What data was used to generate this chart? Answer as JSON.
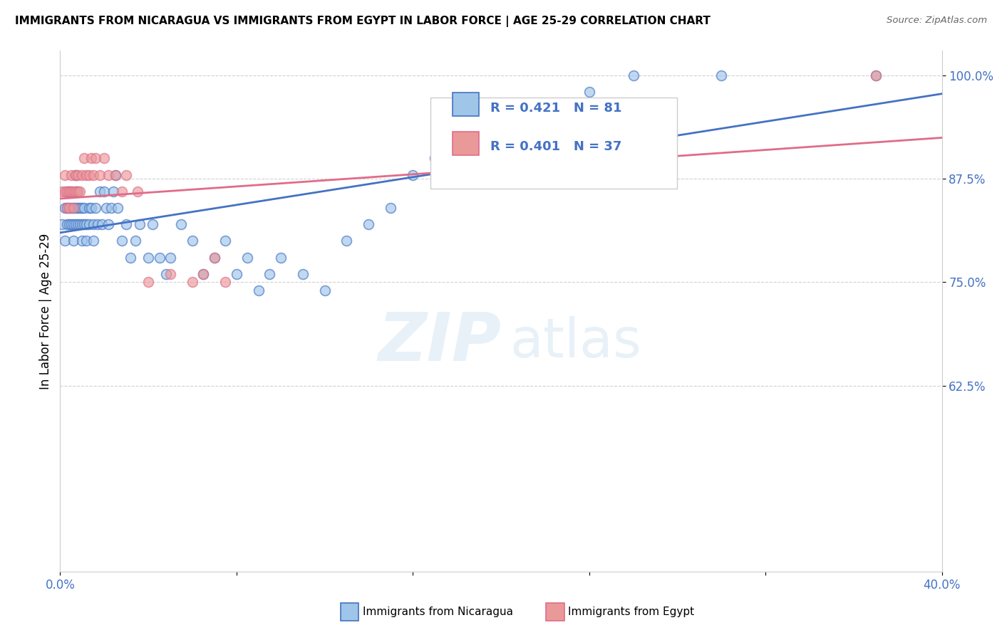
{
  "title": "IMMIGRANTS FROM NICARAGUA VS IMMIGRANTS FROM EGYPT IN LABOR FORCE | AGE 25-29 CORRELATION CHART",
  "source": "Source: ZipAtlas.com",
  "ylabel": "In Labor Force | Age 25-29",
  "xlim": [
    0.0,
    0.4
  ],
  "ylim": [
    0.4,
    1.03
  ],
  "xtick_positions": [
    0.0,
    0.08,
    0.16,
    0.24,
    0.32,
    0.4
  ],
  "xtick_labels": [
    "0.0%",
    "",
    "",
    "",
    "",
    "40.0%"
  ],
  "ytick_positions": [
    0.625,
    0.75,
    0.875,
    1.0
  ],
  "ytick_labels": [
    "62.5%",
    "75.0%",
    "87.5%",
    "100.0%"
  ],
  "nicaragua_color": "#9fc5e8",
  "egypt_color": "#ea9999",
  "nicaragua_line_color": "#4472c4",
  "egypt_line_color": "#e06c8a",
  "R_nicaragua": 0.421,
  "N_nicaragua": 81,
  "R_egypt": 0.401,
  "N_egypt": 37,
  "watermark_zip": "ZIP",
  "watermark_atlas": "atlas",
  "nicaragua_x": [
    0.001,
    0.002,
    0.002,
    0.003,
    0.003,
    0.003,
    0.004,
    0.004,
    0.004,
    0.005,
    0.005,
    0.005,
    0.006,
    0.006,
    0.006,
    0.007,
    0.007,
    0.007,
    0.007,
    0.008,
    0.008,
    0.008,
    0.009,
    0.009,
    0.01,
    0.01,
    0.01,
    0.011,
    0.011,
    0.012,
    0.012,
    0.013,
    0.013,
    0.014,
    0.015,
    0.015,
    0.016,
    0.017,
    0.018,
    0.019,
    0.02,
    0.021,
    0.022,
    0.023,
    0.024,
    0.025,
    0.026,
    0.028,
    0.03,
    0.032,
    0.034,
    0.036,
    0.04,
    0.042,
    0.045,
    0.048,
    0.05,
    0.055,
    0.06,
    0.065,
    0.07,
    0.075,
    0.08,
    0.085,
    0.09,
    0.095,
    0.1,
    0.11,
    0.12,
    0.13,
    0.14,
    0.15,
    0.16,
    0.17,
    0.18,
    0.2,
    0.22,
    0.24,
    0.26,
    0.3,
    0.37
  ],
  "nicaragua_y": [
    0.82,
    0.8,
    0.84,
    0.82,
    0.84,
    0.86,
    0.82,
    0.84,
    0.86,
    0.82,
    0.84,
    0.86,
    0.8,
    0.82,
    0.84,
    0.82,
    0.84,
    0.86,
    0.88,
    0.82,
    0.84,
    0.86,
    0.82,
    0.84,
    0.8,
    0.82,
    0.84,
    0.82,
    0.84,
    0.8,
    0.82,
    0.82,
    0.84,
    0.84,
    0.8,
    0.82,
    0.84,
    0.82,
    0.86,
    0.82,
    0.86,
    0.84,
    0.82,
    0.84,
    0.86,
    0.88,
    0.84,
    0.8,
    0.82,
    0.78,
    0.8,
    0.82,
    0.78,
    0.82,
    0.78,
    0.76,
    0.78,
    0.82,
    0.8,
    0.76,
    0.78,
    0.8,
    0.76,
    0.78,
    0.74,
    0.76,
    0.78,
    0.76,
    0.74,
    0.8,
    0.82,
    0.84,
    0.88,
    0.9,
    0.92,
    0.94,
    0.96,
    0.98,
    1.0,
    1.0,
    1.0
  ],
  "egypt_x": [
    0.001,
    0.002,
    0.002,
    0.003,
    0.003,
    0.004,
    0.004,
    0.005,
    0.005,
    0.006,
    0.006,
    0.007,
    0.007,
    0.008,
    0.008,
    0.009,
    0.01,
    0.011,
    0.012,
    0.013,
    0.014,
    0.015,
    0.016,
    0.018,
    0.02,
    0.022,
    0.025,
    0.028,
    0.03,
    0.035,
    0.04,
    0.05,
    0.06,
    0.065,
    0.07,
    0.075,
    0.37
  ],
  "egypt_y": [
    0.86,
    0.86,
    0.88,
    0.84,
    0.86,
    0.84,
    0.86,
    0.86,
    0.88,
    0.84,
    0.86,
    0.86,
    0.88,
    0.86,
    0.88,
    0.86,
    0.88,
    0.9,
    0.88,
    0.88,
    0.9,
    0.88,
    0.9,
    0.88,
    0.9,
    0.88,
    0.88,
    0.86,
    0.88,
    0.86,
    0.75,
    0.76,
    0.75,
    0.76,
    0.78,
    0.75,
    1.0
  ]
}
